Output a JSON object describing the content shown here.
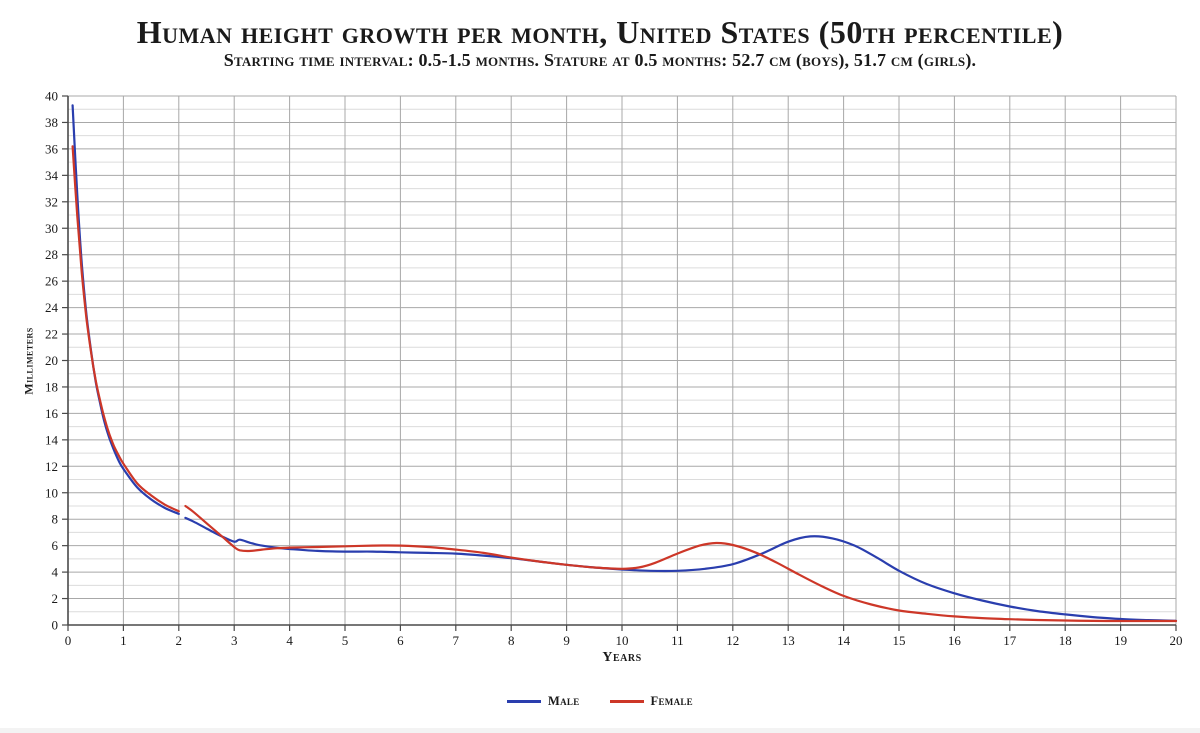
{
  "chart_data": {
    "type": "line",
    "title": "Human height growth per month, United States (50th percentile)",
    "subtitle": "Starting time interval: 0.5-1.5 months. Stature at 0.5 months: 52.7 cm (boys), 51.7 cm (girls).",
    "xlabel": "Years",
    "ylabel": "Millimeters",
    "xlim": [
      0,
      20
    ],
    "ylim": [
      0,
      40
    ],
    "x_ticks": [
      0,
      1,
      2,
      3,
      4,
      5,
      6,
      7,
      8,
      9,
      10,
      11,
      12,
      13,
      14,
      15,
      16,
      17,
      18,
      19,
      20
    ],
    "y_ticks": [
      0,
      2,
      4,
      6,
      8,
      10,
      12,
      14,
      16,
      18,
      20,
      22,
      24,
      26,
      28,
      30,
      32,
      34,
      36,
      38,
      40
    ],
    "grid": {
      "vertical_every_years": 1,
      "horizontal_major_every_mm": 2,
      "horizontal_minor_every_mm": 1,
      "grid_on": true
    },
    "legend_position": "bottom-center",
    "colors": {
      "male": "#2a3eae",
      "female": "#cd3728",
      "grid_major": "#a8a8a8",
      "grid_minor": "#dcdcdc",
      "axis": "#4a4a4a",
      "text": "#1a1a1a"
    },
    "series": [
      {
        "name": "Male",
        "color": "#2a3eae",
        "segments": [
          [
            [
              0.083,
              39.3
            ],
            [
              0.167,
              32.5
            ],
            [
              0.25,
              27.3
            ],
            [
              0.333,
              23.5
            ],
            [
              0.417,
              20.7
            ],
            [
              0.5,
              18.4
            ],
            [
              0.583,
              16.7
            ],
            [
              0.667,
              15.2
            ],
            [
              0.75,
              14.1
            ],
            [
              0.833,
              13.2
            ],
            [
              0.917,
              12.4
            ],
            [
              1,
              11.8
            ],
            [
              1.25,
              10.4
            ],
            [
              1.5,
              9.5
            ],
            [
              1.75,
              8.85
            ],
            [
              2,
              8.4
            ]
          ],
          [
            [
              2.12,
              8.1
            ],
            [
              2.25,
              7.85
            ],
            [
              2.5,
              7.3
            ],
            [
              2.75,
              6.75
            ],
            [
              3,
              6.3
            ],
            [
              3.1,
              6.45
            ],
            [
              3.3,
              6.2
            ],
            [
              3.5,
              6.0
            ],
            [
              3.75,
              5.85
            ],
            [
              4,
              5.75
            ],
            [
              4.5,
              5.6
            ],
            [
              5,
              5.55
            ],
            [
              5.5,
              5.55
            ],
            [
              6,
              5.5
            ],
            [
              6.5,
              5.45
            ],
            [
              7,
              5.4
            ],
            [
              7.5,
              5.25
            ],
            [
              8,
              5.05
            ],
            [
              8.5,
              4.8
            ],
            [
              9,
              4.55
            ],
            [
              9.5,
              4.35
            ],
            [
              10,
              4.2
            ],
            [
              10.5,
              4.1
            ],
            [
              11,
              4.1
            ],
            [
              11.5,
              4.25
            ],
            [
              12,
              4.6
            ],
            [
              12.5,
              5.35
            ],
            [
              13,
              6.3
            ],
            [
              13.4,
              6.7
            ],
            [
              13.8,
              6.55
            ],
            [
              14.2,
              6.0
            ],
            [
              14.6,
              5.1
            ],
            [
              15,
              4.1
            ],
            [
              15.5,
              3.1
            ],
            [
              16,
              2.4
            ],
            [
              16.5,
              1.85
            ],
            [
              17,
              1.4
            ],
            [
              17.5,
              1.05
            ],
            [
              18,
              0.8
            ],
            [
              18.5,
              0.6
            ],
            [
              19,
              0.45
            ],
            [
              19.5,
              0.37
            ],
            [
              20,
              0.32
            ]
          ]
        ]
      },
      {
        "name": "Female",
        "color": "#cd3728",
        "segments": [
          [
            [
              0.083,
              36.2
            ],
            [
              0.167,
              30.9
            ],
            [
              0.25,
              26.6
            ],
            [
              0.333,
              23.2
            ],
            [
              0.417,
              20.6
            ],
            [
              0.5,
              18.5
            ],
            [
              0.583,
              16.9
            ],
            [
              0.667,
              15.5
            ],
            [
              0.75,
              14.4
            ],
            [
              0.833,
              13.5
            ],
            [
              0.917,
              12.8
            ],
            [
              1,
              12.2
            ],
            [
              1.25,
              10.7
            ],
            [
              1.5,
              9.8
            ],
            [
              1.75,
              9.1
            ],
            [
              2,
              8.6
            ]
          ],
          [
            [
              2.12,
              9.0
            ],
            [
              2.25,
              8.6
            ],
            [
              2.5,
              7.7
            ],
            [
              2.75,
              6.8
            ],
            [
              3,
              5.9
            ],
            [
              3.1,
              5.65
            ],
            [
              3.3,
              5.6
            ],
            [
              3.5,
              5.7
            ],
            [
              3.75,
              5.8
            ],
            [
              4,
              5.85
            ],
            [
              4.5,
              5.9
            ],
            [
              5,
              5.95
            ],
            [
              5.5,
              6.0
            ],
            [
              6,
              6.0
            ],
            [
              6.5,
              5.9
            ],
            [
              7,
              5.7
            ],
            [
              7.5,
              5.45
            ],
            [
              8,
              5.1
            ],
            [
              8.5,
              4.8
            ],
            [
              9,
              4.55
            ],
            [
              9.5,
              4.35
            ],
            [
              10,
              4.25
            ],
            [
              10.3,
              4.35
            ],
            [
              10.6,
              4.7
            ],
            [
              11,
              5.4
            ],
            [
              11.4,
              6.0
            ],
            [
              11.7,
              6.2
            ],
            [
              12,
              6.05
            ],
            [
              12.4,
              5.5
            ],
            [
              12.8,
              4.7
            ],
            [
              13.2,
              3.8
            ],
            [
              13.6,
              2.95
            ],
            [
              14,
              2.2
            ],
            [
              14.5,
              1.55
            ],
            [
              15,
              1.1
            ],
            [
              15.5,
              0.85
            ],
            [
              16,
              0.65
            ],
            [
              16.5,
              0.52
            ],
            [
              17,
              0.44
            ],
            [
              17.5,
              0.38
            ],
            [
              18,
              0.34
            ],
            [
              18.5,
              0.31
            ],
            [
              19,
              0.3
            ],
            [
              19.5,
              0.3
            ],
            [
              20,
              0.3
            ]
          ]
        ]
      }
    ]
  }
}
